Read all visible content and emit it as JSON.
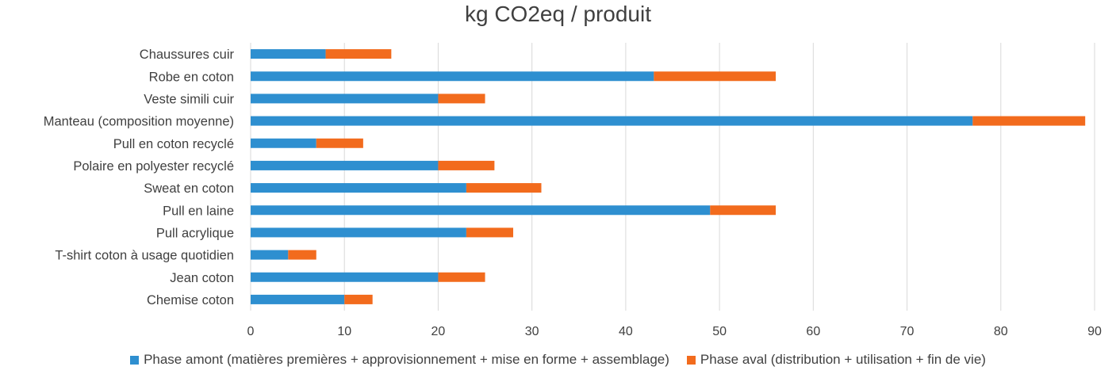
{
  "chart_data": {
    "type": "bar",
    "orientation": "horizontal",
    "stacked": true,
    "title": "kg CO2eq / produit",
    "xlabel": "",
    "ylabel": "",
    "xlim": [
      0,
      90
    ],
    "xticks": [
      0,
      10,
      20,
      30,
      40,
      50,
      60,
      70,
      80,
      90
    ],
    "grid": "vertical",
    "legend_position": "bottom",
    "categories": [
      "Chaussures cuir",
      "Robe en coton",
      "Veste simili cuir",
      "Manteau (composition moyenne)",
      "Pull en coton recyclé",
      "Polaire en polyester recyclé",
      "Sweat en coton",
      "Pull en laine",
      "Pull acrylique",
      "T-shirt coton à usage quotidien",
      "Jean coton",
      "Chemise coton"
    ],
    "series": [
      {
        "name": "Phase amont (matières premières + approvisionnement + mise en forme + assemblage)",
        "color": "#2E8FD0",
        "values": [
          8,
          43,
          20,
          77,
          7,
          20,
          23,
          49,
          23,
          4,
          20,
          10
        ]
      },
      {
        "name": "Phase aval (distribution + utilisation + fin de vie)",
        "color": "#F26B1D",
        "values": [
          7,
          13,
          5,
          12,
          5,
          6,
          8,
          7,
          5,
          3,
          5,
          3
        ]
      }
    ]
  }
}
